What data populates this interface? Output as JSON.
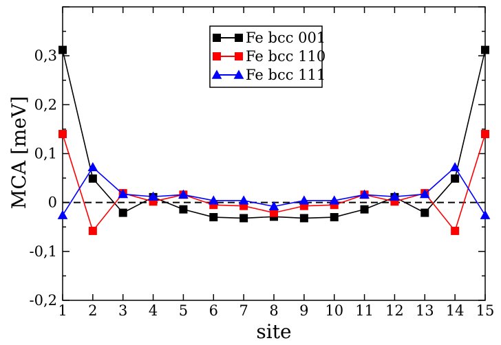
{
  "chart_data": {
    "type": "line",
    "title": "",
    "xlabel": "site",
    "ylabel": "MCA [meV]",
    "xlim": [
      1,
      15
    ],
    "ylim": [
      -0.2,
      0.4
    ],
    "x": [
      1,
      2,
      3,
      4,
      5,
      6,
      7,
      8,
      9,
      10,
      11,
      12,
      13,
      14,
      15
    ],
    "x_ticks": [
      "1",
      "2",
      "3",
      "4",
      "5",
      "6",
      "7",
      "8",
      "9",
      "10",
      "11",
      "12",
      "13",
      "14",
      "15"
    ],
    "y_ticks": [
      {
        "value": -0.2,
        "label": "-0,2"
      },
      {
        "value": -0.1,
        "label": "-0,1"
      },
      {
        "value": 0.0,
        "label": "0"
      },
      {
        "value": 0.1,
        "label": "0,1"
      },
      {
        "value": 0.2,
        "label": "0,2"
      },
      {
        "value": 0.3,
        "label": "0,3"
      }
    ],
    "reference_line": {
      "y": 0,
      "style": "dashed"
    },
    "legend_position": "top-center",
    "series": [
      {
        "name": "Fe bcc 001",
        "color": "#000000",
        "marker": "square",
        "values": [
          0.312,
          0.049,
          -0.021,
          0.011,
          -0.014,
          -0.03,
          -0.032,
          -0.029,
          -0.032,
          -0.03,
          -0.014,
          0.011,
          -0.021,
          0.049,
          0.312
        ]
      },
      {
        "name": "Fe bcc 110",
        "color": "#ff0000",
        "marker": "square",
        "values": [
          0.14,
          -0.058,
          0.019,
          0.002,
          0.016,
          -0.005,
          -0.007,
          -0.021,
          -0.007,
          -0.005,
          0.016,
          0.002,
          0.019,
          -0.058,
          0.14
        ]
      },
      {
        "name": "Fe bcc 111",
        "color": "#0000ff",
        "marker": "triangle",
        "values": [
          -0.026,
          0.072,
          0.017,
          0.012,
          0.016,
          0.004,
          0.004,
          -0.008,
          0.004,
          0.004,
          0.016,
          0.012,
          0.017,
          0.072,
          -0.026
        ]
      }
    ]
  }
}
